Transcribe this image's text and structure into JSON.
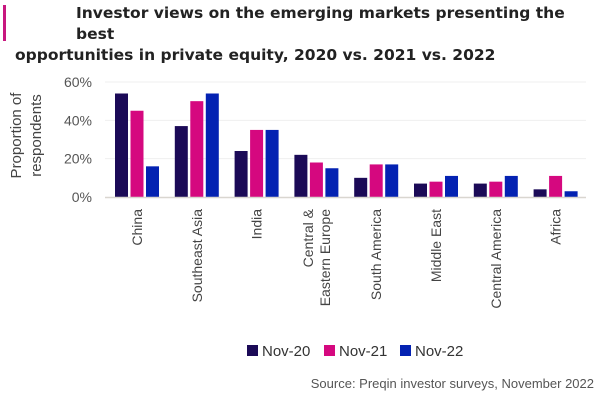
{
  "title_line1": "Investor views on the emerging markets presenting the best",
  "title_line2": "opportunities in private equity, 2020 vs. 2021 vs. 2022",
  "source": "Source: Preqin investor surveys, November 2022",
  "accent_color": "#c8177f",
  "chart_data": {
    "type": "bar",
    "title": "Investor views on the emerging markets presenting the best opportunities in private equity, 2020 vs. 2021 vs. 2022",
    "xlabel": "",
    "ylabel": "Proportion of respondents",
    "ylabel_lines": [
      "Proportion of",
      "respondents"
    ],
    "ylim": [
      0,
      60
    ],
    "yticks": [
      0,
      20,
      40,
      60
    ],
    "ytick_labels": [
      "0%",
      "20%",
      "40%",
      "60%"
    ],
    "grid": true,
    "legend_position": "bottom",
    "categories": [
      "China",
      "Southeast Asia",
      "India",
      "Central & Eastern Europe",
      "South America",
      "Middle East",
      "Central America",
      "Africa"
    ],
    "category_lines": [
      [
        "China"
      ],
      [
        "Southeast Asia"
      ],
      [
        "India"
      ],
      [
        "Central &",
        "Eastern Europe"
      ],
      [
        "South America"
      ],
      [
        "Middle East"
      ],
      [
        "Central America"
      ],
      [
        "Africa"
      ]
    ],
    "series": [
      {
        "name": "Nov-20",
        "color": "#1b0a57",
        "values": [
          54,
          37,
          24,
          22,
          10,
          7,
          7,
          4
        ]
      },
      {
        "name": "Nov-21",
        "color": "#d5087f",
        "values": [
          45,
          50,
          35,
          18,
          17,
          8,
          8,
          11
        ]
      },
      {
        "name": "Nov-22",
        "color": "#0422b2",
        "values": [
          16,
          54,
          35,
          15,
          17,
          11,
          11,
          3
        ]
      }
    ]
  }
}
